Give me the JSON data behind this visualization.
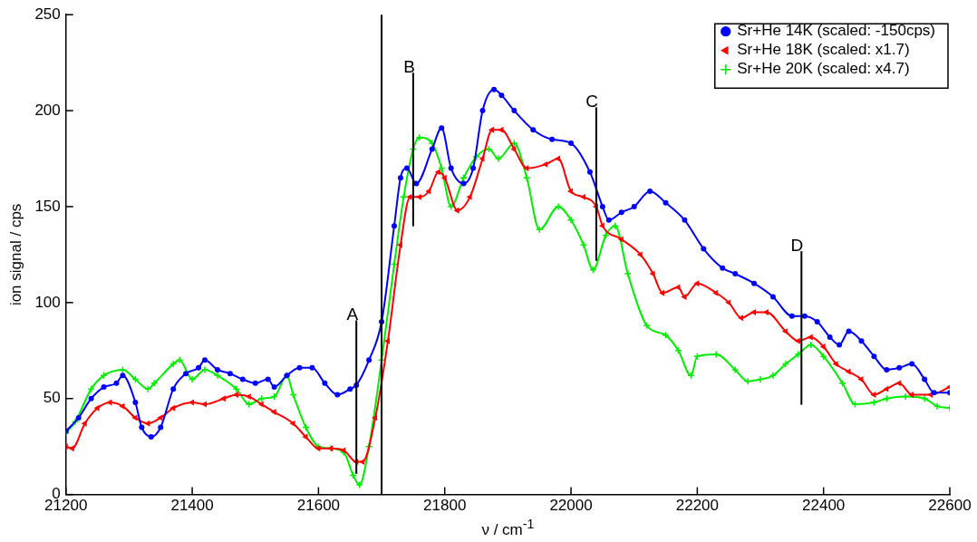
{
  "chart_data": {
    "type": "line",
    "xlabel": "ν / cm$^{-1}$",
    "ylabel": "ion signal / cps",
    "xlim": [
      21200,
      22600
    ],
    "xticks": [
      21200,
      21400,
      21600,
      21800,
      22000,
      22200,
      22400,
      22600
    ],
    "ylim": [
      0,
      250
    ],
    "yticks": [
      0,
      50,
      100,
      150,
      200,
      250
    ],
    "grid": false,
    "legend": "top right",
    "series": [
      {
        "name": "Sr+He 14K (scaled: -150cps)",
        "color": "#0000ff",
        "marker": "circle",
        "x": [
          21200,
          21220,
          21240,
          21260,
          21280,
          21290,
          21310,
          21320,
          21335,
          21350,
          21370,
          21390,
          21410,
          21420,
          21440,
          21460,
          21480,
          21500,
          21520,
          21530,
          21550,
          21570,
          21590,
          21610,
          21630,
          21650,
          21660,
          21680,
          21700,
          21720,
          21730,
          21740,
          21755,
          21780,
          21795,
          21810,
          21830,
          21845,
          21860,
          21878,
          21890,
          21910,
          21940,
          21970,
          22000,
          22030,
          22050,
          22060,
          22080,
          22100,
          22125,
          22150,
          22180,
          22210,
          22240,
          22260,
          22290,
          22320,
          22350,
          22370,
          22390,
          22410,
          22425,
          22440,
          22460,
          22480,
          22500,
          22520,
          22540,
          22560,
          22575,
          22600
        ],
        "values": [
          33,
          40,
          50,
          56,
          58,
          62,
          48,
          35,
          30,
          35,
          55,
          63,
          66,
          70,
          65,
          63,
          60,
          58,
          60,
          56,
          62,
          66,
          66,
          58,
          52,
          55,
          57,
          70,
          90,
          140,
          165,
          170,
          162,
          180,
          191,
          170,
          162,
          170,
          200,
          211,
          208,
          200,
          190,
          185,
          183,
          168,
          150,
          143,
          147,
          150,
          158,
          152,
          143,
          128,
          118,
          115,
          110,
          103,
          93,
          93,
          90,
          82,
          78,
          85,
          80,
          72,
          65,
          66,
          68,
          60,
          53,
          53
        ]
      },
      {
        "name": "Sr+He 18K (scaled: x1.7)",
        "color": "#ff0000",
        "marker": "triangle",
        "x": [
          21200,
          21210,
          21230,
          21250,
          21270,
          21290,
          21310,
          21330,
          21350,
          21370,
          21400,
          21420,
          21450,
          21470,
          21490,
          21510,
          21530,
          21560,
          21580,
          21600,
          21620,
          21640,
          21660,
          21670,
          21690,
          21710,
          21730,
          21745,
          21760,
          21775,
          21790,
          21800,
          21820,
          21840,
          21860,
          21875,
          21890,
          21910,
          21930,
          21960,
          21980,
          22000,
          22020,
          22040,
          22050,
          22080,
          22110,
          22130,
          22145,
          22170,
          22180,
          22200,
          22230,
          22250,
          22270,
          22290,
          22310,
          22340,
          22360,
          22380,
          22400,
          22420,
          22440,
          22460,
          22480,
          22500,
          22520,
          22540,
          22570,
          22600
        ],
        "values": [
          25,
          24,
          37,
          45,
          48,
          46,
          40,
          37,
          40,
          45,
          48,
          47,
          50,
          52,
          51,
          47,
          43,
          37,
          30,
          24,
          24,
          23,
          17,
          17,
          40,
          80,
          130,
          155,
          155,
          158,
          168,
          165,
          148,
          155,
          175,
          190,
          190,
          180,
          170,
          172,
          175,
          158,
          155,
          150,
          140,
          133,
          125,
          115,
          105,
          108,
          103,
          110,
          105,
          100,
          92,
          95,
          95,
          85,
          80,
          82,
          77,
          68,
          64,
          60,
          52,
          55,
          58,
          52,
          52,
          56
        ]
      },
      {
        "name": "Sr+He 20K (scaled: x4.7)",
        "color": "#00ee00",
        "marker": "cross",
        "x": [
          21200,
          21215,
          21240,
          21260,
          21290,
          21310,
          21330,
          21340,
          21370,
          21380,
          21400,
          21420,
          21440,
          21470,
          21490,
          21510,
          21530,
          21550,
          21560,
          21580,
          21600,
          21620,
          21640,
          21655,
          21665,
          21680,
          21700,
          21720,
          21735,
          21750,
          21760,
          21780,
          21795,
          21810,
          21830,
          21850,
          21870,
          21885,
          21910,
          21930,
          21950,
          21980,
          22000,
          22020,
          22035,
          22055,
          22070,
          22090,
          22120,
          22150,
          22170,
          22190,
          22200,
          22230,
          22260,
          22280,
          22300,
          22320,
          22340,
          22360,
          22380,
          22400,
          22430,
          22450,
          22480,
          22500,
          22530,
          22560,
          22580,
          22600
        ],
        "values": [
          32,
          38,
          55,
          62,
          65,
          60,
          55,
          58,
          68,
          70,
          60,
          65,
          62,
          55,
          47,
          50,
          51,
          62,
          52,
          35,
          25,
          24,
          22,
          10,
          5,
          25,
          70,
          120,
          155,
          180,
          186,
          183,
          170,
          150,
          165,
          176,
          180,
          175,
          183,
          165,
          138,
          150,
          143,
          130,
          117,
          135,
          140,
          115,
          88,
          83,
          75,
          62,
          72,
          73,
          65,
          59,
          60,
          62,
          68,
          73,
          78,
          72,
          58,
          47,
          48,
          50,
          51,
          50,
          46,
          45
        ]
      }
    ],
    "ref_lines": [
      {
        "axis": "x",
        "value": 21700,
        "color": "#000000"
      },
      {
        "axis": "x",
        "value": 21660,
        "label": "A",
        "color": "#000000"
      },
      {
        "axis": "x",
        "value": 21750,
        "label": "B",
        "color": "#000000"
      },
      {
        "axis": "x",
        "value": 22040,
        "label": "C",
        "color": "#000000"
      },
      {
        "axis": "x",
        "value": 22365,
        "label": "D",
        "color": "#000000"
      }
    ]
  }
}
